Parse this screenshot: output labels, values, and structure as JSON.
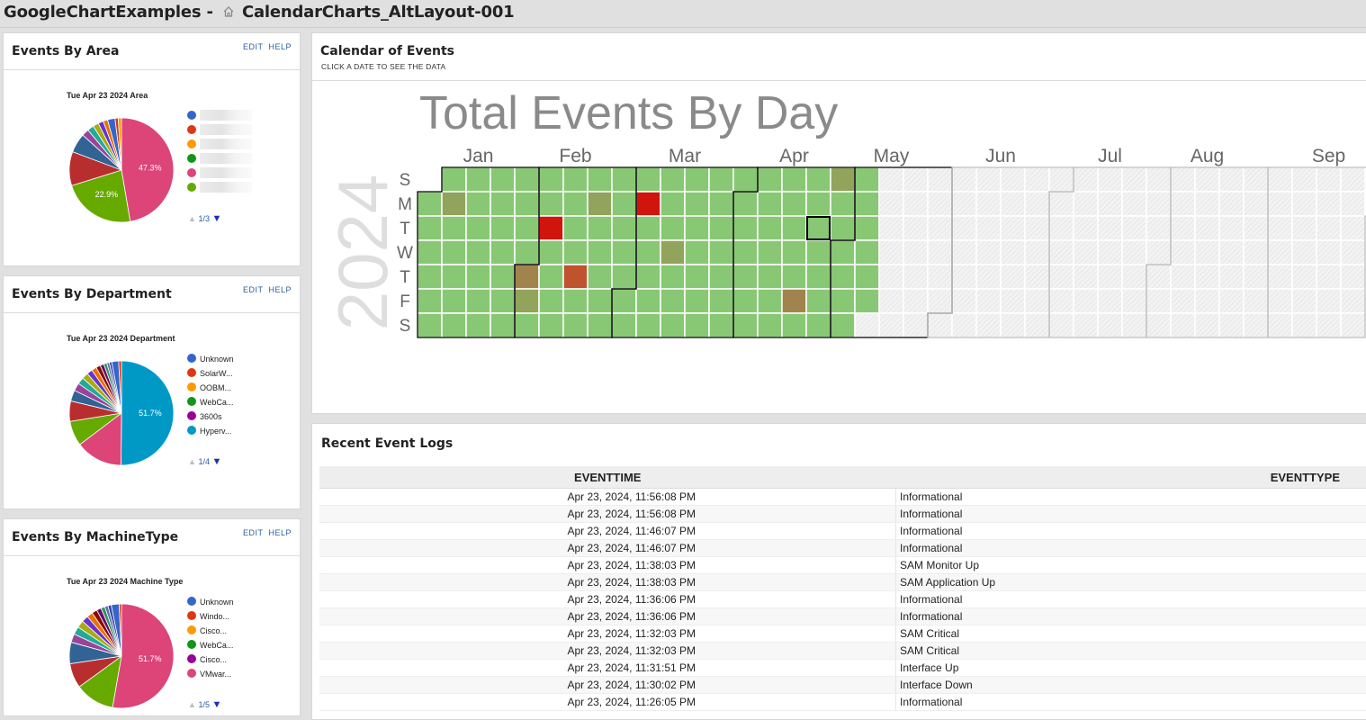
{
  "header": {
    "app": "GoogleChartExamples",
    "separator": "-",
    "page": "CalendarCharts_AltLayout-001"
  },
  "left_panels": [
    {
      "title": "Events By Area",
      "edit": "EDIT",
      "help": "HELP",
      "chart_title": "Tue Apr 23 2024 Area",
      "pager": "1/3",
      "chart_data": {
        "type": "pie",
        "slices": [
          {
            "label": "",
            "value": 47.3,
            "color": "#dd4477",
            "text": "47.3%"
          },
          {
            "label": "",
            "value": 22.9,
            "color": "#66aa00",
            "text": "22.9%"
          },
          {
            "label": "",
            "value": 10.5,
            "color": "#b82e2e",
            "text": ""
          },
          {
            "label": "",
            "value": 6.0,
            "color": "#316395",
            "text": ""
          },
          {
            "label": "",
            "value": 2.2,
            "color": "#994499",
            "text": ""
          },
          {
            "label": "",
            "value": 2.0,
            "color": "#22aa99",
            "text": ""
          },
          {
            "label": "",
            "value": 1.8,
            "color": "#aaaa11",
            "text": ""
          },
          {
            "label": "",
            "value": 1.6,
            "color": "#6633cc",
            "text": ""
          },
          {
            "label": "",
            "value": 1.4,
            "color": "#e67300",
            "text": ""
          },
          {
            "label": "",
            "value": 2.3,
            "color": "#3366cc",
            "text": ""
          },
          {
            "label": "",
            "value": 1.0,
            "color": "#dc3912",
            "text": ""
          },
          {
            "label": "",
            "value": 1.0,
            "color": "#ff9900",
            "text": ""
          }
        ],
        "legend": [
          {
            "label": "",
            "color": "#3366cc"
          },
          {
            "label": "",
            "color": "#dc3912"
          },
          {
            "label": "",
            "color": "#ff9900"
          },
          {
            "label": "",
            "color": "#109618"
          },
          {
            "label": "",
            "color": "#dd4477"
          },
          {
            "label": "",
            "color": "#66aa00"
          }
        ]
      }
    },
    {
      "title": "Events By Department",
      "edit": "EDIT",
      "help": "HELP",
      "chart_title": "Tue Apr 23 2024 Department",
      "pager": "1/4",
      "chart_data": {
        "type": "pie",
        "slices": [
          {
            "label": "Hyperv...",
            "value": 51.7,
            "color": "#0099c6",
            "text": "51.7%"
          },
          {
            "label": "",
            "value": 15.0,
            "color": "#dd4477",
            "text": ""
          },
          {
            "label": "",
            "value": 8.0,
            "color": "#66aa00",
            "text": ""
          },
          {
            "label": "",
            "value": 6.5,
            "color": "#b82e2e",
            "text": ""
          },
          {
            "label": "",
            "value": 3.5,
            "color": "#316395",
            "text": ""
          },
          {
            "label": "",
            "value": 2.5,
            "color": "#994499",
            "text": ""
          },
          {
            "label": "",
            "value": 2.2,
            "color": "#22aa99",
            "text": ""
          },
          {
            "label": "",
            "value": 2.0,
            "color": "#aaaa11",
            "text": ""
          },
          {
            "label": "",
            "value": 1.8,
            "color": "#6633cc",
            "text": ""
          },
          {
            "label": "",
            "value": 1.6,
            "color": "#e67300",
            "text": ""
          },
          {
            "label": "",
            "value": 1.4,
            "color": "#8b0707",
            "text": ""
          },
          {
            "label": "",
            "value": 1.2,
            "color": "#651067",
            "text": ""
          },
          {
            "label": "",
            "value": 1.0,
            "color": "#329262",
            "text": ""
          },
          {
            "label": "",
            "value": 0.8,
            "color": "#5574a6",
            "text": ""
          },
          {
            "label": "",
            "value": 0.8,
            "color": "#3b3eac",
            "text": ""
          },
          {
            "label": "Unknown",
            "value": 2.2,
            "color": "#3366cc",
            "text": ""
          },
          {
            "label": "SolarW...",
            "value": 0.9,
            "color": "#dc3912",
            "text": ""
          }
        ],
        "legend": [
          {
            "label": "Unknown",
            "color": "#3366cc"
          },
          {
            "label": "SolarW...",
            "color": "#dc3912"
          },
          {
            "label": "OOBM...",
            "color": "#ff9900"
          },
          {
            "label": "WebCa...",
            "color": "#109618"
          },
          {
            "label": "3600s",
            "color": "#990099"
          },
          {
            "label": "Hyperv...",
            "color": "#0099c6"
          }
        ]
      }
    },
    {
      "title": "Events By MachineType",
      "edit": "EDIT",
      "help": "HELP",
      "chart_title": "Tue Apr 23 2024 Machine Type",
      "pager": "1/5",
      "chart_data": {
        "type": "pie",
        "slices": [
          {
            "label": "VMwar...",
            "value": 51.7,
            "color": "#dd4477",
            "text": "51.7%"
          },
          {
            "label": "",
            "value": 12.0,
            "color": "#66aa00",
            "text": ""
          },
          {
            "label": "",
            "value": 7.5,
            "color": "#b82e2e",
            "text": ""
          },
          {
            "label": "",
            "value": 6.5,
            "color": "#316395",
            "text": ""
          },
          {
            "label": "",
            "value": 2.6,
            "color": "#994499",
            "text": ""
          },
          {
            "label": "",
            "value": 2.4,
            "color": "#22aa99",
            "text": ""
          },
          {
            "label": "",
            "value": 2.2,
            "color": "#aaaa11",
            "text": ""
          },
          {
            "label": "",
            "value": 2.0,
            "color": "#6633cc",
            "text": ""
          },
          {
            "label": "",
            "value": 1.8,
            "color": "#e67300",
            "text": ""
          },
          {
            "label": "",
            "value": 1.6,
            "color": "#8b0707",
            "text": ""
          },
          {
            "label": "",
            "value": 1.4,
            "color": "#651067",
            "text": ""
          },
          {
            "label": "",
            "value": 1.2,
            "color": "#329262",
            "text": ""
          },
          {
            "label": "",
            "value": 1.0,
            "color": "#5574a6",
            "text": ""
          },
          {
            "label": "",
            "value": 1.0,
            "color": "#3b3eac",
            "text": ""
          },
          {
            "label": "Unknown",
            "value": 2.4,
            "color": "#3366cc",
            "text": ""
          },
          {
            "label": "Windo...",
            "value": 0.7,
            "color": "#dc3912",
            "text": ""
          }
        ],
        "legend": [
          {
            "label": "Unknown",
            "color": "#3366cc"
          },
          {
            "label": "Windo...",
            "color": "#dc3912"
          },
          {
            "label": "Cisco...",
            "color": "#ff9900"
          },
          {
            "label": "WebCa...",
            "color": "#109618"
          },
          {
            "label": "Cisco...",
            "color": "#990099"
          },
          {
            "label": "VMwar...",
            "color": "#dd4477"
          }
        ]
      }
    }
  ],
  "calendar": {
    "panel_title": "Calendar of Events",
    "subtitle": "CLICK A DATE TO SEE THE DATA",
    "chart_title": "Total Events By Day",
    "year": "2024",
    "months": [
      "Jan",
      "Feb",
      "Mar",
      "Apr",
      "May",
      "Jun",
      "Jul",
      "Aug",
      "Sep"
    ],
    "day_labels": [
      "S",
      "M",
      "T",
      "W",
      "T",
      "F",
      "S"
    ],
    "colors": {
      "base": "#88c874",
      "olive": "#92a35c",
      "brown": "#a1844d",
      "rust": "#bf5330",
      "red": "#d1150d",
      "nodata": "#efefef"
    },
    "chart_data": {
      "type": "heatmap",
      "last_date": "2024-05-10",
      "selected_date": "2024-04-23",
      "highlights": [
        {
          "date": "2024-01-08",
          "level": "olive"
        },
        {
          "date": "2024-02-01",
          "level": "brown"
        },
        {
          "date": "2024-02-02",
          "level": "olive"
        },
        {
          "date": "2024-02-06",
          "level": "red"
        },
        {
          "date": "2024-02-15",
          "level": "rust"
        },
        {
          "date": "2024-02-19",
          "level": "olive"
        },
        {
          "date": "2024-03-04",
          "level": "red"
        },
        {
          "date": "2024-03-13",
          "level": "olive"
        },
        {
          "date": "2024-04-19",
          "level": "brown"
        },
        {
          "date": "2024-04-28",
          "level": "olive"
        }
      ]
    }
  },
  "logs": {
    "panel_title": "Recent Event Logs",
    "columns": [
      "EVENTTIME",
      "EVENTTYPE"
    ],
    "rows": [
      [
        "Apr 23, 2024, 11:56:08 PM",
        "Informational"
      ],
      [
        "Apr 23, 2024, 11:56:08 PM",
        "Informational"
      ],
      [
        "Apr 23, 2024, 11:46:07 PM",
        "Informational"
      ],
      [
        "Apr 23, 2024, 11:46:07 PM",
        "Informational"
      ],
      [
        "Apr 23, 2024, 11:38:03 PM",
        "SAM Monitor Up"
      ],
      [
        "Apr 23, 2024, 11:38:03 PM",
        "SAM Application Up"
      ],
      [
        "Apr 23, 2024, 11:36:06 PM",
        "Informational"
      ],
      [
        "Apr 23, 2024, 11:36:06 PM",
        "Informational"
      ],
      [
        "Apr 23, 2024, 11:32:03 PM",
        "SAM Critical"
      ],
      [
        "Apr 23, 2024, 11:32:03 PM",
        "SAM Critical"
      ],
      [
        "Apr 23, 2024, 11:31:51 PM",
        "Interface Up"
      ],
      [
        "Apr 23, 2024, 11:30:02 PM",
        "Interface Down"
      ],
      [
        "Apr 23, 2024, 11:26:05 PM",
        "Informational"
      ]
    ]
  }
}
